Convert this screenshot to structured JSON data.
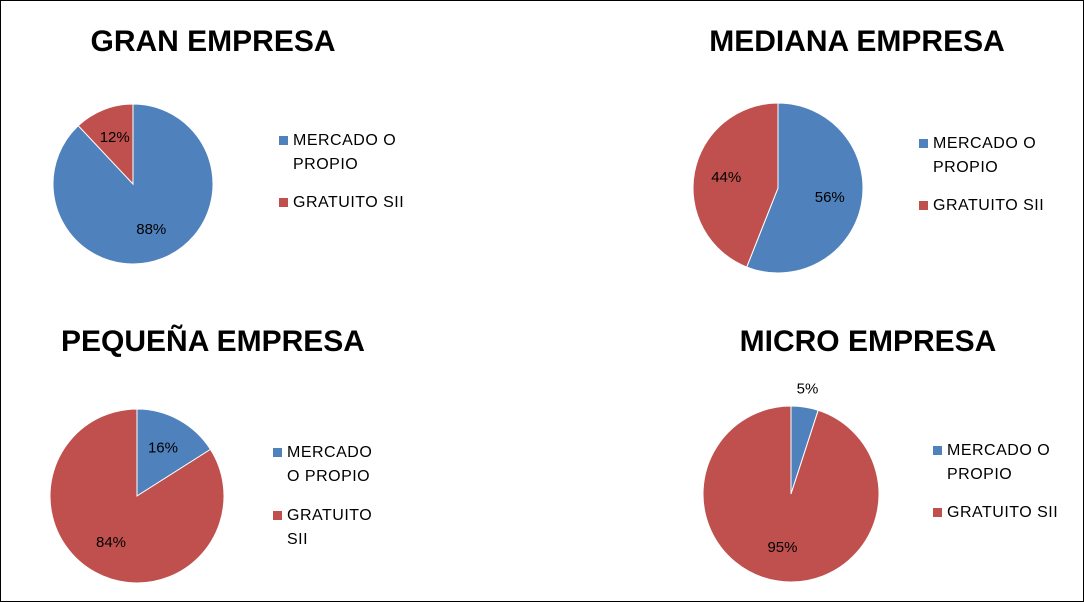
{
  "chart_data": [
    {
      "type": "pie",
      "title": "GRAN EMPRESA",
      "categories": [
        "MERCADO O PROPIO",
        "GRATUITO SII"
      ],
      "values": [
        88,
        12
      ],
      "value_labels": [
        "88%",
        "12%"
      ],
      "colors": [
        "#4f81bd",
        "#c0504d"
      ]
    },
    {
      "type": "pie",
      "title": "MEDIANA EMPRESA",
      "categories": [
        "MERCADO O PROPIO",
        "GRATUITO SII"
      ],
      "values": [
        56,
        44
      ],
      "value_labels": [
        "56%",
        "44%"
      ],
      "colors": [
        "#4f81bd",
        "#c0504d"
      ]
    },
    {
      "type": "pie",
      "title": "PEQUEÑA EMPRESA",
      "categories": [
        "MERCADO O PROPIO",
        "GRATUITO SII"
      ],
      "values": [
        16,
        84
      ],
      "value_labels": [
        "16%",
        "84%"
      ],
      "colors": [
        "#4f81bd",
        "#c0504d"
      ]
    },
    {
      "type": "pie",
      "title": "MICRO EMPRESA",
      "categories": [
        "MERCADO O PROPIO",
        "GRATUITO SII"
      ],
      "values": [
        5,
        95
      ],
      "value_labels": [
        "5%",
        "95%"
      ],
      "colors": [
        "#4f81bd",
        "#c0504d"
      ]
    }
  ]
}
